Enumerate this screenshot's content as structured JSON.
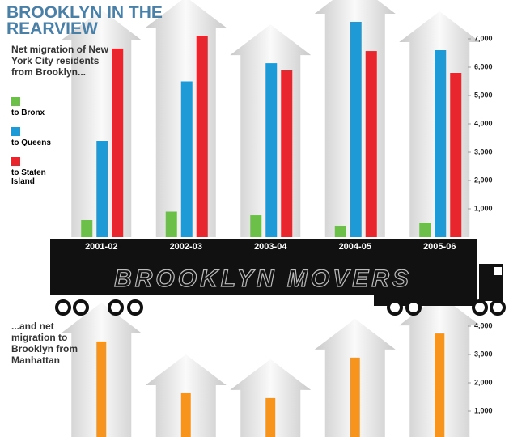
{
  "chart_data": [
    {
      "type": "bar",
      "title": "BROOKLYN IN THE REARVIEW",
      "subtitle": "Net migration of New York City residents from Brooklyn...",
      "annotation": "BROOKLYN MOVERS",
      "categories": [
        "2001-02",
        "2002-03",
        "2003-04",
        "2004-05",
        "2005-06"
      ],
      "series": [
        {
          "name": "to Bronx",
          "color": "#6cc04a",
          "values": [
            600,
            900,
            770,
            400,
            510
          ]
        },
        {
          "name": "to Queens",
          "color": "#1e9ad6",
          "values": [
            3400,
            5500,
            6140,
            7600,
            6600
          ]
        },
        {
          "name": "to Staten Island",
          "color": "#e8262d",
          "values": [
            6660,
            7110,
            5890,
            6570,
            5800
          ]
        }
      ],
      "ylim": [
        0,
        7700
      ],
      "yticks": [
        {
          "value": 1000,
          "label": "1,000"
        },
        {
          "value": 2000,
          "label": "2,000"
        },
        {
          "value": 3000,
          "label": "3,000"
        },
        {
          "value": 4000,
          "label": "4,000"
        },
        {
          "value": 5000,
          "label": "5,000"
        },
        {
          "value": 6000,
          "label": "6,000"
        },
        {
          "value": 7000,
          "label": "7,000"
        }
      ]
    },
    {
      "type": "bar",
      "annotation": "...and net migration to Brooklyn from Manhattan",
      "values": [
        3460,
        1630,
        1460,
        2890,
        3740
      ],
      "color": "#f7941d",
      "ylim": [
        0,
        4300
      ],
      "yticks": [
        {
          "value": 1000,
          "label": "1,000"
        },
        {
          "value": 2000,
          "label": "2,000"
        },
        {
          "value": 3000,
          "label": "3,000"
        },
        {
          "value": 4000,
          "label": "4,000"
        }
      ]
    }
  ]
}
